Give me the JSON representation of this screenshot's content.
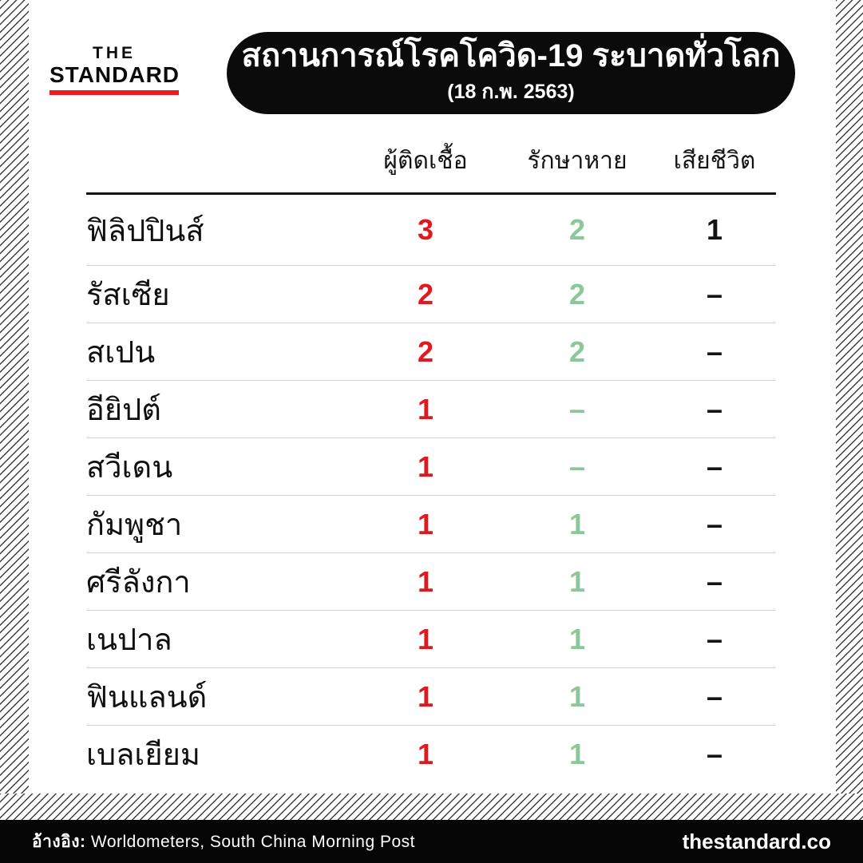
{
  "brand": {
    "line1": "THE",
    "line2": "STANDARD"
  },
  "banner": {
    "title": "สถานการณ์โรคโควิด-19 ระบาดทั่วโลก",
    "subtitle": "(18 ก.พ. 2563)"
  },
  "chart_data": {
    "type": "table",
    "title": "สถานการณ์โรคโควิด-19 ระบาดทั่วโลก",
    "subtitle": "(18 ก.พ. 2563)",
    "columns": [
      "ผู้ติดเชื้อ",
      "รักษาหาย",
      "เสียชีวิต"
    ],
    "rows": [
      {
        "country": "ฟิลิปปินส์",
        "infected": "3",
        "recovered": "2",
        "deaths": "1"
      },
      {
        "country": "รัสเซีย",
        "infected": "2",
        "recovered": "2",
        "deaths": "–"
      },
      {
        "country": "สเปน",
        "infected": "2",
        "recovered": "2",
        "deaths": "–"
      },
      {
        "country": "อียิปต์",
        "infected": "1",
        "recovered": "–",
        "deaths": "–"
      },
      {
        "country": "สวีเดน",
        "infected": "1",
        "recovered": "–",
        "deaths": "–"
      },
      {
        "country": "กัมพูชา",
        "infected": "1",
        "recovered": "1",
        "deaths": "–"
      },
      {
        "country": "ศรีลังกา",
        "infected": "1",
        "recovered": "1",
        "deaths": "–"
      },
      {
        "country": "เนปาล",
        "infected": "1",
        "recovered": "1",
        "deaths": "–"
      },
      {
        "country": "ฟินแลนด์",
        "infected": "1",
        "recovered": "1",
        "deaths": "–"
      },
      {
        "country": "เบลเยียม",
        "infected": "1",
        "recovered": "1",
        "deaths": "–"
      }
    ]
  },
  "footer": {
    "source_label": "อ้างอิง:",
    "source_text": "Worldometers, South China Morning Post",
    "site": "thestandard.co"
  },
  "colors": {
    "infected": "#e0181f",
    "recovered": "#8cc79b",
    "deaths": "#141414",
    "accent_red": "#ed1c24"
  }
}
